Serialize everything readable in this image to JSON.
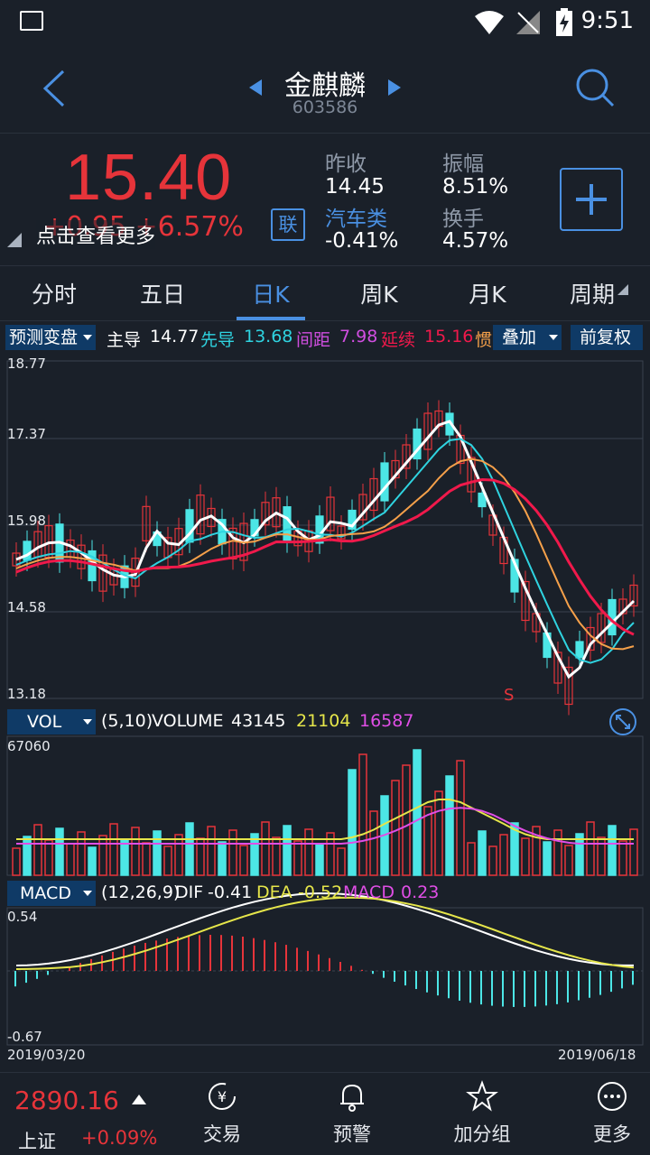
{
  "status": {
    "time": "9:51"
  },
  "header": {
    "title": "金麒麟",
    "code": "603586"
  },
  "quote": {
    "price": "15.40",
    "change": "+0.95  +6.57%",
    "hint": "点击查看更多",
    "lian": "联",
    "prev_close_label": "昨收",
    "prev_close": "14.45",
    "sector_label": "汽车类",
    "sector_change": "-0.41%",
    "amplitude_label": "振幅",
    "amplitude": "8.51%",
    "turnover_label": "换手",
    "turnover": "4.57%"
  },
  "tabs": [
    "分时",
    "五日",
    "日K",
    "周K",
    "月K",
    "周期"
  ],
  "indicators": {
    "predict": "预测变盘",
    "zhudao_label": "主导",
    "zhudao": "14.77",
    "xiandao_label": "先导",
    "xiandao": "13.68",
    "jianju_label": "间距",
    "jianju": "7.98",
    "yanxu_label": "延续",
    "yanxu": "15.16",
    "guan_label": "惯",
    "overlay": "叠加",
    "fq": "前复权"
  },
  "colors": {
    "up": "#e6343a",
    "down": "#4ce6e6",
    "accent": "#4a90e2",
    "ma_white": "#ffffff",
    "ma_cyan": "#2fd3e0",
    "ma_orange": "#f5a04a",
    "ma_red": "#f0194b"
  },
  "chart_data": [
    {
      "type": "candlestick",
      "y_ticks": [
        "18.77",
        "17.37",
        "15.98",
        "14.58",
        "13.18"
      ],
      "ylim": [
        13.18,
        18.77
      ],
      "marker": "S",
      "dates": [
        "2019/03/20",
        "2019/06/18"
      ]
    },
    {
      "type": "bar",
      "selector": "VOL",
      "params": "(5,10)",
      "volume_label": "VOLUME",
      "volume": "43145",
      "ma5": "21104",
      "ma10": "16587",
      "ymax_label": "67060"
    },
    {
      "type": "bar",
      "selector": "MACD",
      "params": "(12,26,9)",
      "dif_label": "DIF",
      "dif": "-0.41",
      "dea_label": "DEA",
      "dea": "-0.52",
      "macd_label": "MACD",
      "macd": "0.23",
      "ymax_label": "0.54",
      "ymin_label": "-0.67"
    }
  ],
  "bottom": {
    "index_value": "2890.16",
    "index_name": "上证",
    "index_change": "+0.09%",
    "nav": [
      "交易",
      "预警",
      "加分组",
      "更多"
    ]
  }
}
